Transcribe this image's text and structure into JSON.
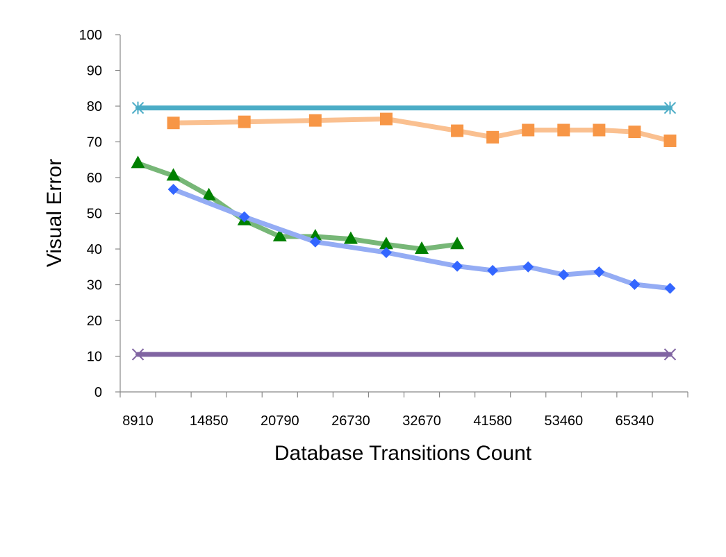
{
  "chart_data": {
    "type": "line",
    "title": "",
    "xlabel": "Database Transitions Count",
    "ylabel": "Visual Error",
    "categories": [
      "8910",
      "",
      "14850",
      "",
      "20790",
      "",
      "26730",
      "",
      "32670",
      "",
      "41580",
      "",
      "53460",
      "",
      "65340",
      ""
    ],
    "ylim": [
      0,
      100
    ],
    "yticks": [
      0,
      10,
      20,
      30,
      40,
      50,
      60,
      70,
      80,
      90,
      100
    ],
    "grid": false,
    "legend": "none",
    "series": [
      {
        "color": "#4BACC6",
        "marker": "star",
        "values": [
          79.5,
          null,
          null,
          null,
          null,
          null,
          null,
          null,
          null,
          null,
          null,
          null,
          null,
          null,
          null,
          79.5
        ]
      },
      {
        "color": "#F79646",
        "line_color": "#FAC090",
        "marker": "square",
        "values": [
          null,
          75.3,
          null,
          75.6,
          null,
          76.0,
          null,
          76.4,
          null,
          73.1,
          71.3,
          73.3,
          73.3,
          73.3,
          72.8,
          70.3
        ]
      },
      {
        "color": "#008000",
        "line_color": "#77B777",
        "marker": "triangle",
        "values": [
          64.0,
          60.5,
          55.0,
          48.0,
          43.5,
          43.5,
          42.8,
          41.3,
          40.0,
          41.3,
          null,
          null,
          null,
          null,
          null,
          null
        ]
      },
      {
        "color": "#3366FF",
        "line_color": "#94ACF4",
        "marker": "diamond",
        "values": [
          null,
          56.7,
          null,
          49.0,
          null,
          42.0,
          null,
          39.0,
          null,
          35.2,
          34.0,
          35.0,
          32.8,
          33.6,
          30.1,
          29.0
        ]
      },
      {
        "color": "#8064A2",
        "marker": "x",
        "values": [
          10.5,
          null,
          null,
          null,
          null,
          null,
          null,
          null,
          null,
          null,
          null,
          null,
          null,
          null,
          null,
          10.5
        ]
      }
    ]
  }
}
